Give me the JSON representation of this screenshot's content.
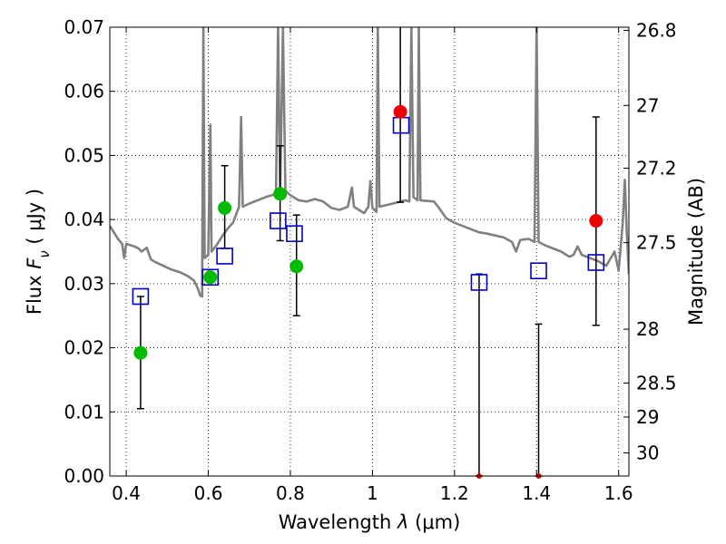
{
  "chart_data": {
    "type": "scatter",
    "title": "",
    "xlabel_prefix": "Wavelength  ",
    "xlabel_symbol": "λ",
    "xlabel_units": " (μm)",
    "ylabel_prefix": "Flux  ",
    "ylabel_symbol": "F",
    "ylabel_subscript": "ν",
    "ylabel_units": "  ( μJy )",
    "y2label": "Magnitude (AB)",
    "xlim": [
      0.36,
      1.625
    ],
    "ylim": [
      0.0,
      0.07
    ],
    "grid": true,
    "xticks": [
      {
        "value": 0.4,
        "label": "0.4"
      },
      {
        "value": 0.6,
        "label": "0.6"
      },
      {
        "value": 0.8,
        "label": "0.8"
      },
      {
        "value": 1.0,
        "label": "1"
      },
      {
        "value": 1.2,
        "label": "1.2"
      },
      {
        "value": 1.4,
        "label": "1.4"
      },
      {
        "value": 1.6,
        "label": "1.6"
      }
    ],
    "yticks": [
      {
        "value": 0.0,
        "label": "0.00"
      },
      {
        "value": 0.01,
        "label": "0.01"
      },
      {
        "value": 0.02,
        "label": "0.02"
      },
      {
        "value": 0.03,
        "label": "0.03"
      },
      {
        "value": 0.04,
        "label": "0.04"
      },
      {
        "value": 0.05,
        "label": "0.05"
      },
      {
        "value": 0.06,
        "label": "0.06"
      },
      {
        "value": 0.07,
        "label": "0.07"
      }
    ],
    "magnitude_ticks": [
      {
        "flux": 0.0695,
        "label": "26.8"
      },
      {
        "flux": 0.0578,
        "label": "27"
      },
      {
        "flux": 0.048,
        "label": "27.2"
      },
      {
        "flux": 0.0364,
        "label": "27.5"
      },
      {
        "flux": 0.0229,
        "label": "28"
      },
      {
        "flux": 0.0145,
        "label": "28.5"
      },
      {
        "flux": 0.0092,
        "label": "29"
      },
      {
        "flux": 0.0036,
        "label": "30"
      }
    ],
    "series": [
      {
        "name": "model_spectrum",
        "type": "line",
        "color": "#808080",
        "points": [
          [
            0.36,
            0.039
          ],
          [
            0.37,
            0.038
          ],
          [
            0.38,
            0.037
          ],
          [
            0.39,
            0.0362
          ],
          [
            0.395,
            0.034
          ],
          [
            0.4,
            0.0362
          ],
          [
            0.42,
            0.0358
          ],
          [
            0.43,
            0.0355
          ],
          [
            0.437,
            0.035
          ],
          [
            0.45,
            0.0356
          ],
          [
            0.46,
            0.0338
          ],
          [
            0.47,
            0.0334
          ],
          [
            0.49,
            0.0328
          ],
          [
            0.51,
            0.0322
          ],
          [
            0.53,
            0.0318
          ],
          [
            0.55,
            0.0312
          ],
          [
            0.565,
            0.0305
          ],
          [
            0.575,
            0.0292
          ],
          [
            0.58,
            0.0282
          ],
          [
            0.585,
            0.028
          ],
          [
            0.588,
            0.07
          ],
          [
            0.591,
            0.034
          ],
          [
            0.6,
            0.0345
          ],
          [
            0.605,
            0.0548
          ],
          [
            0.608,
            0.035
          ],
          [
            0.62,
            0.036
          ],
          [
            0.635,
            0.0375
          ],
          [
            0.65,
            0.0388
          ],
          [
            0.66,
            0.0395
          ],
          [
            0.675,
            0.042
          ],
          [
            0.68,
            0.056
          ],
          [
            0.684,
            0.042
          ],
          [
            0.7,
            0.0425
          ],
          [
            0.72,
            0.043
          ],
          [
            0.74,
            0.0435
          ],
          [
            0.765,
            0.044
          ],
          [
            0.77,
            0.07
          ],
          [
            0.775,
            0.044
          ],
          [
            0.782,
            0.07
          ],
          [
            0.788,
            0.0445
          ],
          [
            0.8,
            0.0438
          ],
          [
            0.82,
            0.043
          ],
          [
            0.84,
            0.0428
          ],
          [
            0.86,
            0.0432
          ],
          [
            0.88,
            0.0428
          ],
          [
            0.9,
            0.0418
          ],
          [
            0.92,
            0.0415
          ],
          [
            0.94,
            0.042
          ],
          [
            0.95,
            0.045
          ],
          [
            0.955,
            0.042
          ],
          [
            0.98,
            0.041
          ],
          [
            0.99,
            0.042
          ],
          [
            0.995,
            0.046
          ],
          [
            1.0,
            0.0418
          ],
          [
            1.01,
            0.0412
          ],
          [
            1.013,
            0.07
          ],
          [
            1.017,
            0.042
          ],
          [
            1.05,
            0.0425
          ],
          [
            1.08,
            0.043
          ],
          [
            1.09,
            0.0428
          ],
          [
            1.095,
            0.07
          ],
          [
            1.1,
            0.0435
          ],
          [
            1.11,
            0.043
          ],
          [
            1.113,
            0.07
          ],
          [
            1.117,
            0.043
          ],
          [
            1.15,
            0.0428
          ],
          [
            1.16,
            0.042
          ],
          [
            1.18,
            0.0402
          ],
          [
            1.2,
            0.0395
          ],
          [
            1.22,
            0.039
          ],
          [
            1.24,
            0.0385
          ],
          [
            1.26,
            0.038
          ],
          [
            1.28,
            0.0378
          ],
          [
            1.3,
            0.0375
          ],
          [
            1.32,
            0.0372
          ],
          [
            1.34,
            0.0365
          ],
          [
            1.35,
            0.035
          ],
          [
            1.36,
            0.0368
          ],
          [
            1.38,
            0.037
          ],
          [
            1.395,
            0.0365
          ],
          [
            1.4,
            0.07
          ],
          [
            1.405,
            0.0365
          ],
          [
            1.42,
            0.036
          ],
          [
            1.44,
            0.0355
          ],
          [
            1.46,
            0.035
          ],
          [
            1.48,
            0.0342
          ],
          [
            1.49,
            0.0345
          ],
          [
            1.5,
            0.0358
          ],
          [
            1.51,
            0.0345
          ],
          [
            1.53,
            0.034
          ],
          [
            1.55,
            0.0335
          ],
          [
            1.57,
            0.0328
          ],
          [
            1.59,
            0.035
          ],
          [
            1.6,
            0.032
          ],
          [
            1.61,
            0.0395
          ],
          [
            1.615,
            0.0462
          ],
          [
            1.62,
            0.038
          ],
          [
            1.625,
            0.0315
          ]
        ]
      },
      {
        "name": "model_photometry",
        "type": "scatter",
        "marker": "open-square",
        "color": "#0000cc",
        "points": [
          [
            0.435,
            0.028
          ],
          [
            0.605,
            0.031
          ],
          [
            0.64,
            0.0343
          ],
          [
            0.77,
            0.0398
          ],
          [
            0.81,
            0.0378
          ],
          [
            1.07,
            0.0547
          ],
          [
            1.26,
            0.0302
          ],
          [
            1.405,
            0.032
          ],
          [
            1.545,
            0.0333
          ]
        ]
      },
      {
        "name": "observed_detections",
        "type": "scatter",
        "marker": "filled-circle",
        "color": "#00bb00",
        "points": [
          [
            0.435,
            0.0192,
            0.0105,
            0.028
          ],
          [
            0.605,
            0.031,
            0.031,
            0.031
          ],
          [
            0.64,
            0.0418,
            0.0355,
            0.0484
          ],
          [
            0.775,
            0.044,
            0.0367,
            0.0515
          ],
          [
            0.815,
            0.0327,
            0.025,
            0.0407
          ]
        ]
      },
      {
        "name": "observed_low_snr",
        "type": "scatter",
        "marker": "filled-circle",
        "color": "#ee0000",
        "points": [
          [
            1.068,
            0.0568,
            0.0427,
            0.07
          ],
          [
            1.26,
            0.0,
            0.0,
            0.0315
          ],
          [
            1.405,
            0.0,
            0.0,
            0.0237
          ],
          [
            1.545,
            0.0398,
            0.0235,
            0.056
          ]
        ]
      }
    ]
  }
}
